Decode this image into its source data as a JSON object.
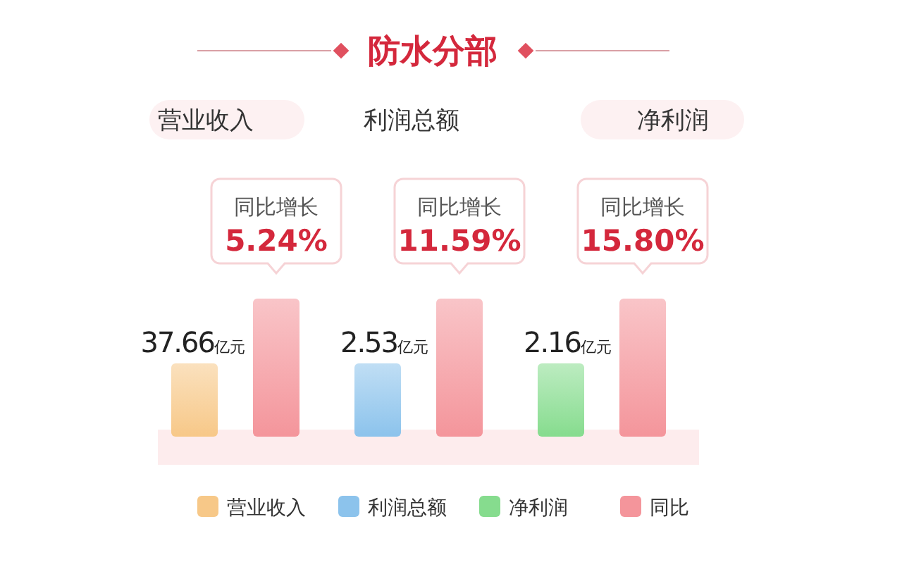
{
  "chart_data": {
    "type": "other",
    "title": "防水分部",
    "categories": [
      "营业收入",
      "利润总额",
      "净利润"
    ],
    "series": [
      {
        "name": "营业收入",
        "color": "#f7c888",
        "values": [
          37.66,
          null,
          null
        ],
        "value_labels": [
          "37.66亿元",
          null,
          null
        ]
      },
      {
        "name": "利润总额",
        "color": "#8cc3ec",
        "values": [
          null,
          2.53,
          null
        ],
        "value_labels": [
          null,
          "2.53亿元",
          null
        ]
      },
      {
        "name": "净利润",
        "color": "#86dc8e",
        "values": [
          null,
          null,
          2.16
        ],
        "value_labels": [
          null,
          null,
          "2.16亿元"
        ]
      },
      {
        "name": "同比",
        "color": "#f4959b",
        "values": [
          5.24,
          11.59,
          15.8
        ],
        "value_labels": [
          "5.24%",
          "11.59%",
          "15.80%"
        ]
      }
    ],
    "annotations": [
      "同比增长",
      "同比增长",
      "同比增长"
    ],
    "legend": "bottom"
  }
}
